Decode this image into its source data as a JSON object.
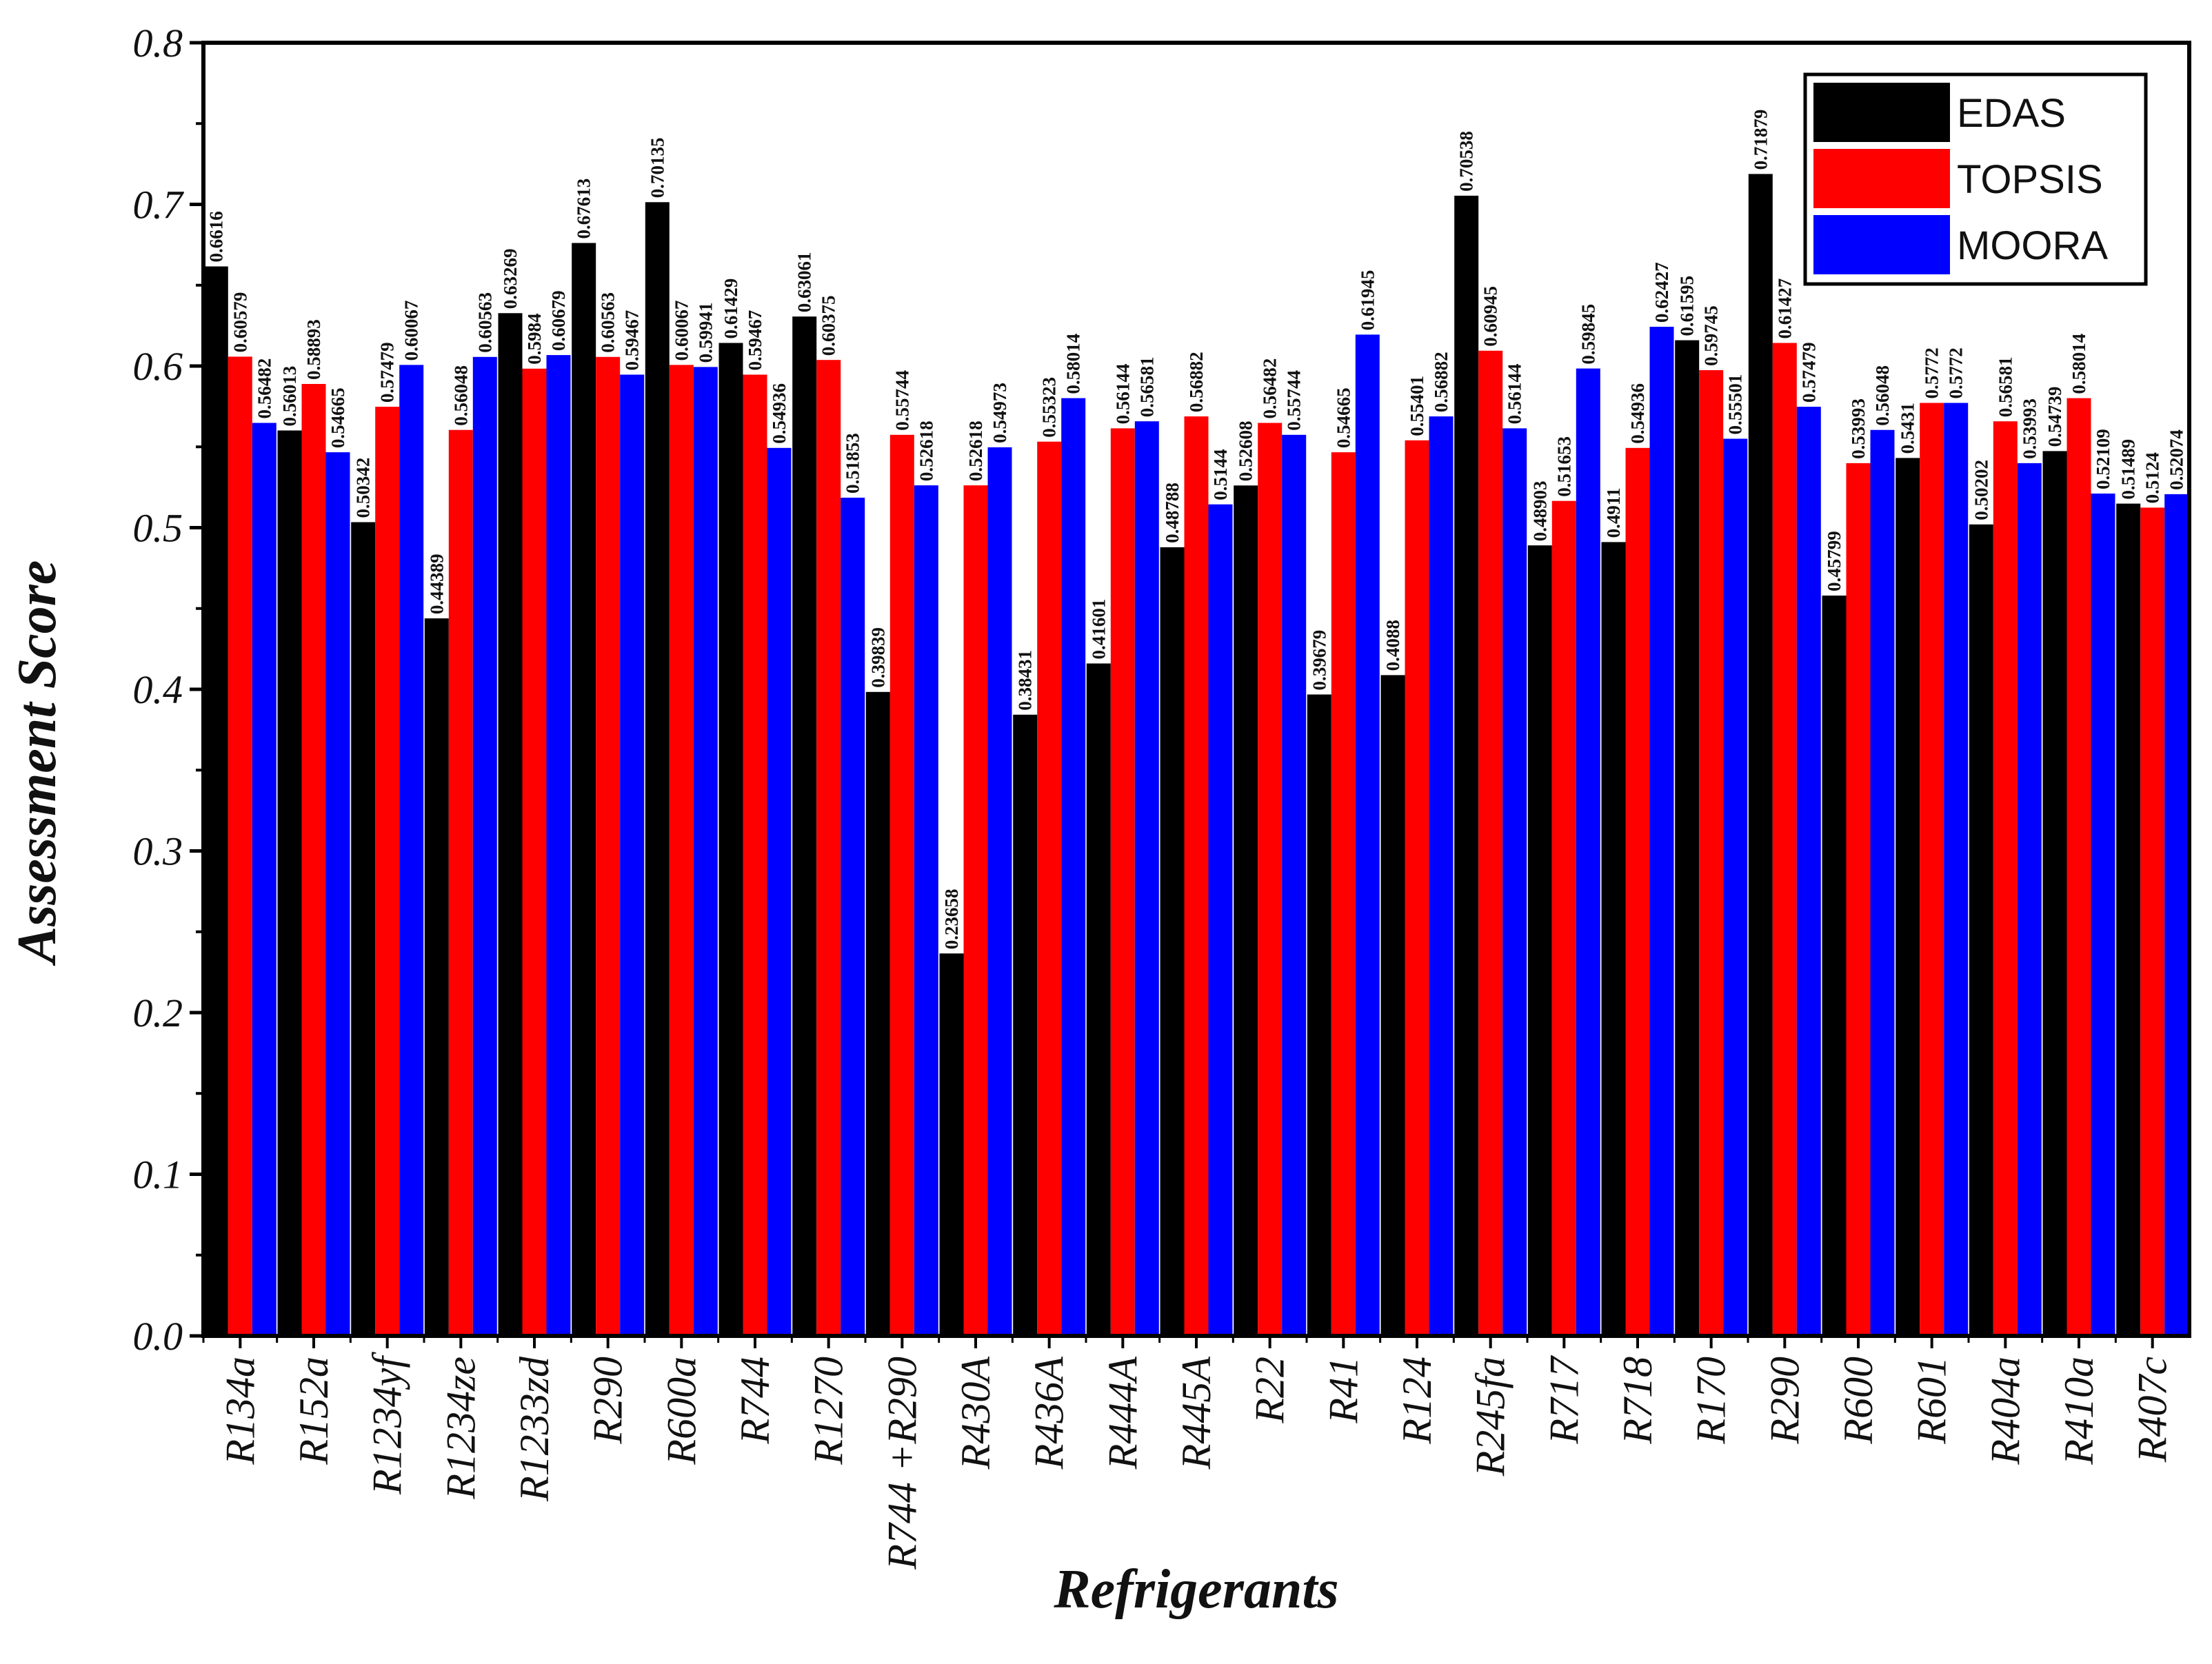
{
  "chart_data": {
    "type": "bar",
    "title": "",
    "xlabel": "Refrigerants",
    "ylabel": "Assessment Score",
    "ylim": [
      0,
      0.8
    ],
    "yticks": [
      "0.0",
      "0.1",
      "0.2",
      "0.3",
      "0.4",
      "0.5",
      "0.6",
      "0.7",
      "0.8"
    ],
    "grid": false,
    "legend_position": "top-right",
    "categories": [
      "R134a",
      "R152a",
      "R1234yf",
      "R1234ze",
      "R1233zd",
      "R290",
      "R600a",
      "R744",
      "R1270",
      "R744 +R290",
      "R430A",
      "R436A",
      "R444A",
      "R445A",
      "R22",
      "R41",
      "R124",
      "R245fa",
      "R717",
      "R718",
      "R170",
      "R290",
      "R600",
      "R601",
      "R404a",
      "R410a",
      "R407c"
    ],
    "series": [
      {
        "name": "EDAS",
        "color": "#000000",
        "values": [
          0.6616,
          0.56013,
          0.50342,
          0.44389,
          0.63269,
          0.67613,
          0.70135,
          0.61429,
          0.63061,
          0.39839,
          0.23658,
          0.38431,
          0.41601,
          0.48788,
          0.52608,
          0.39679,
          0.4088,
          0.70538,
          0.48903,
          0.4911,
          0.61595,
          0.71879,
          0.45799,
          0.5431,
          0.50202,
          0.54739,
          0.51489
        ],
        "labels": [
          "0.6616",
          "0.56013",
          "0.50342",
          "0.44389",
          "0.63269",
          "0.67613",
          "0.70135",
          "0.61429",
          "0.63061",
          "0.39839",
          "0.23658",
          "0.38431",
          "0.41601",
          "0.48788",
          "0.52608",
          "0.39679",
          "0.4088",
          "0.70538",
          "0.48903",
          "0.4911",
          "0.61595",
          "0.71879",
          "0.45799",
          "0.5431",
          "0.50202",
          "0.54739",
          "0.51489"
        ]
      },
      {
        "name": "TOPSIS",
        "color": "#ff0000",
        "values": [
          0.60579,
          0.58893,
          0.57479,
          0.56048,
          0.5984,
          0.60563,
          0.60067,
          0.59467,
          0.60375,
          0.55744,
          0.52618,
          0.55323,
          0.56144,
          0.56882,
          0.56482,
          0.54665,
          0.55401,
          0.60945,
          0.51653,
          0.54936,
          0.59745,
          0.61427,
          0.53993,
          0.5772,
          0.56581,
          0.58014,
          0.5124
        ],
        "labels": [
          "0.60579",
          "0.58893",
          "0.57479",
          "0.56048",
          "0.5984",
          "0.60563",
          "0.60067",
          "0.59467",
          "0.60375",
          "0.55744",
          "0.52618",
          "0.55323",
          "0.56144",
          "0.56882",
          "0.56482",
          "0.54665",
          "0.55401",
          "0.60945",
          "0.51653",
          "0.54936",
          "0.59745",
          "0.61427",
          "0.53993",
          "0.5772",
          "0.56581",
          "0.58014",
          "0.5124"
        ]
      },
      {
        "name": "MOORA",
        "color": "#0000ff",
        "values": [
          0.56482,
          0.54665,
          0.60067,
          0.60563,
          0.60679,
          0.59467,
          0.59941,
          0.54936,
          0.51853,
          0.52618,
          0.54973,
          0.58014,
          0.56581,
          0.5144,
          0.55744,
          0.61945,
          0.56882,
          0.56144,
          0.59845,
          0.62427,
          0.55501,
          0.57479,
          0.56048,
          0.5772,
          0.53993,
          0.52109,
          0.52074
        ],
        "labels": [
          "0.56482",
          "0.54665",
          "0.60067",
          "0.60563",
          "0.60679",
          "0.59467",
          "0.59941",
          "0.54936",
          "0.51853",
          "0.52618",
          "0.54973",
          "0.58014",
          "0.56581",
          "0.5144",
          "0.55744",
          "0.61945",
          "0.56882",
          "0.56144",
          "0.59845",
          "0.62427",
          "0.55501",
          "0.57479",
          "0.56048",
          "0.5772",
          "0.53993",
          "0.52109",
          "0.52074"
        ]
      }
    ]
  }
}
